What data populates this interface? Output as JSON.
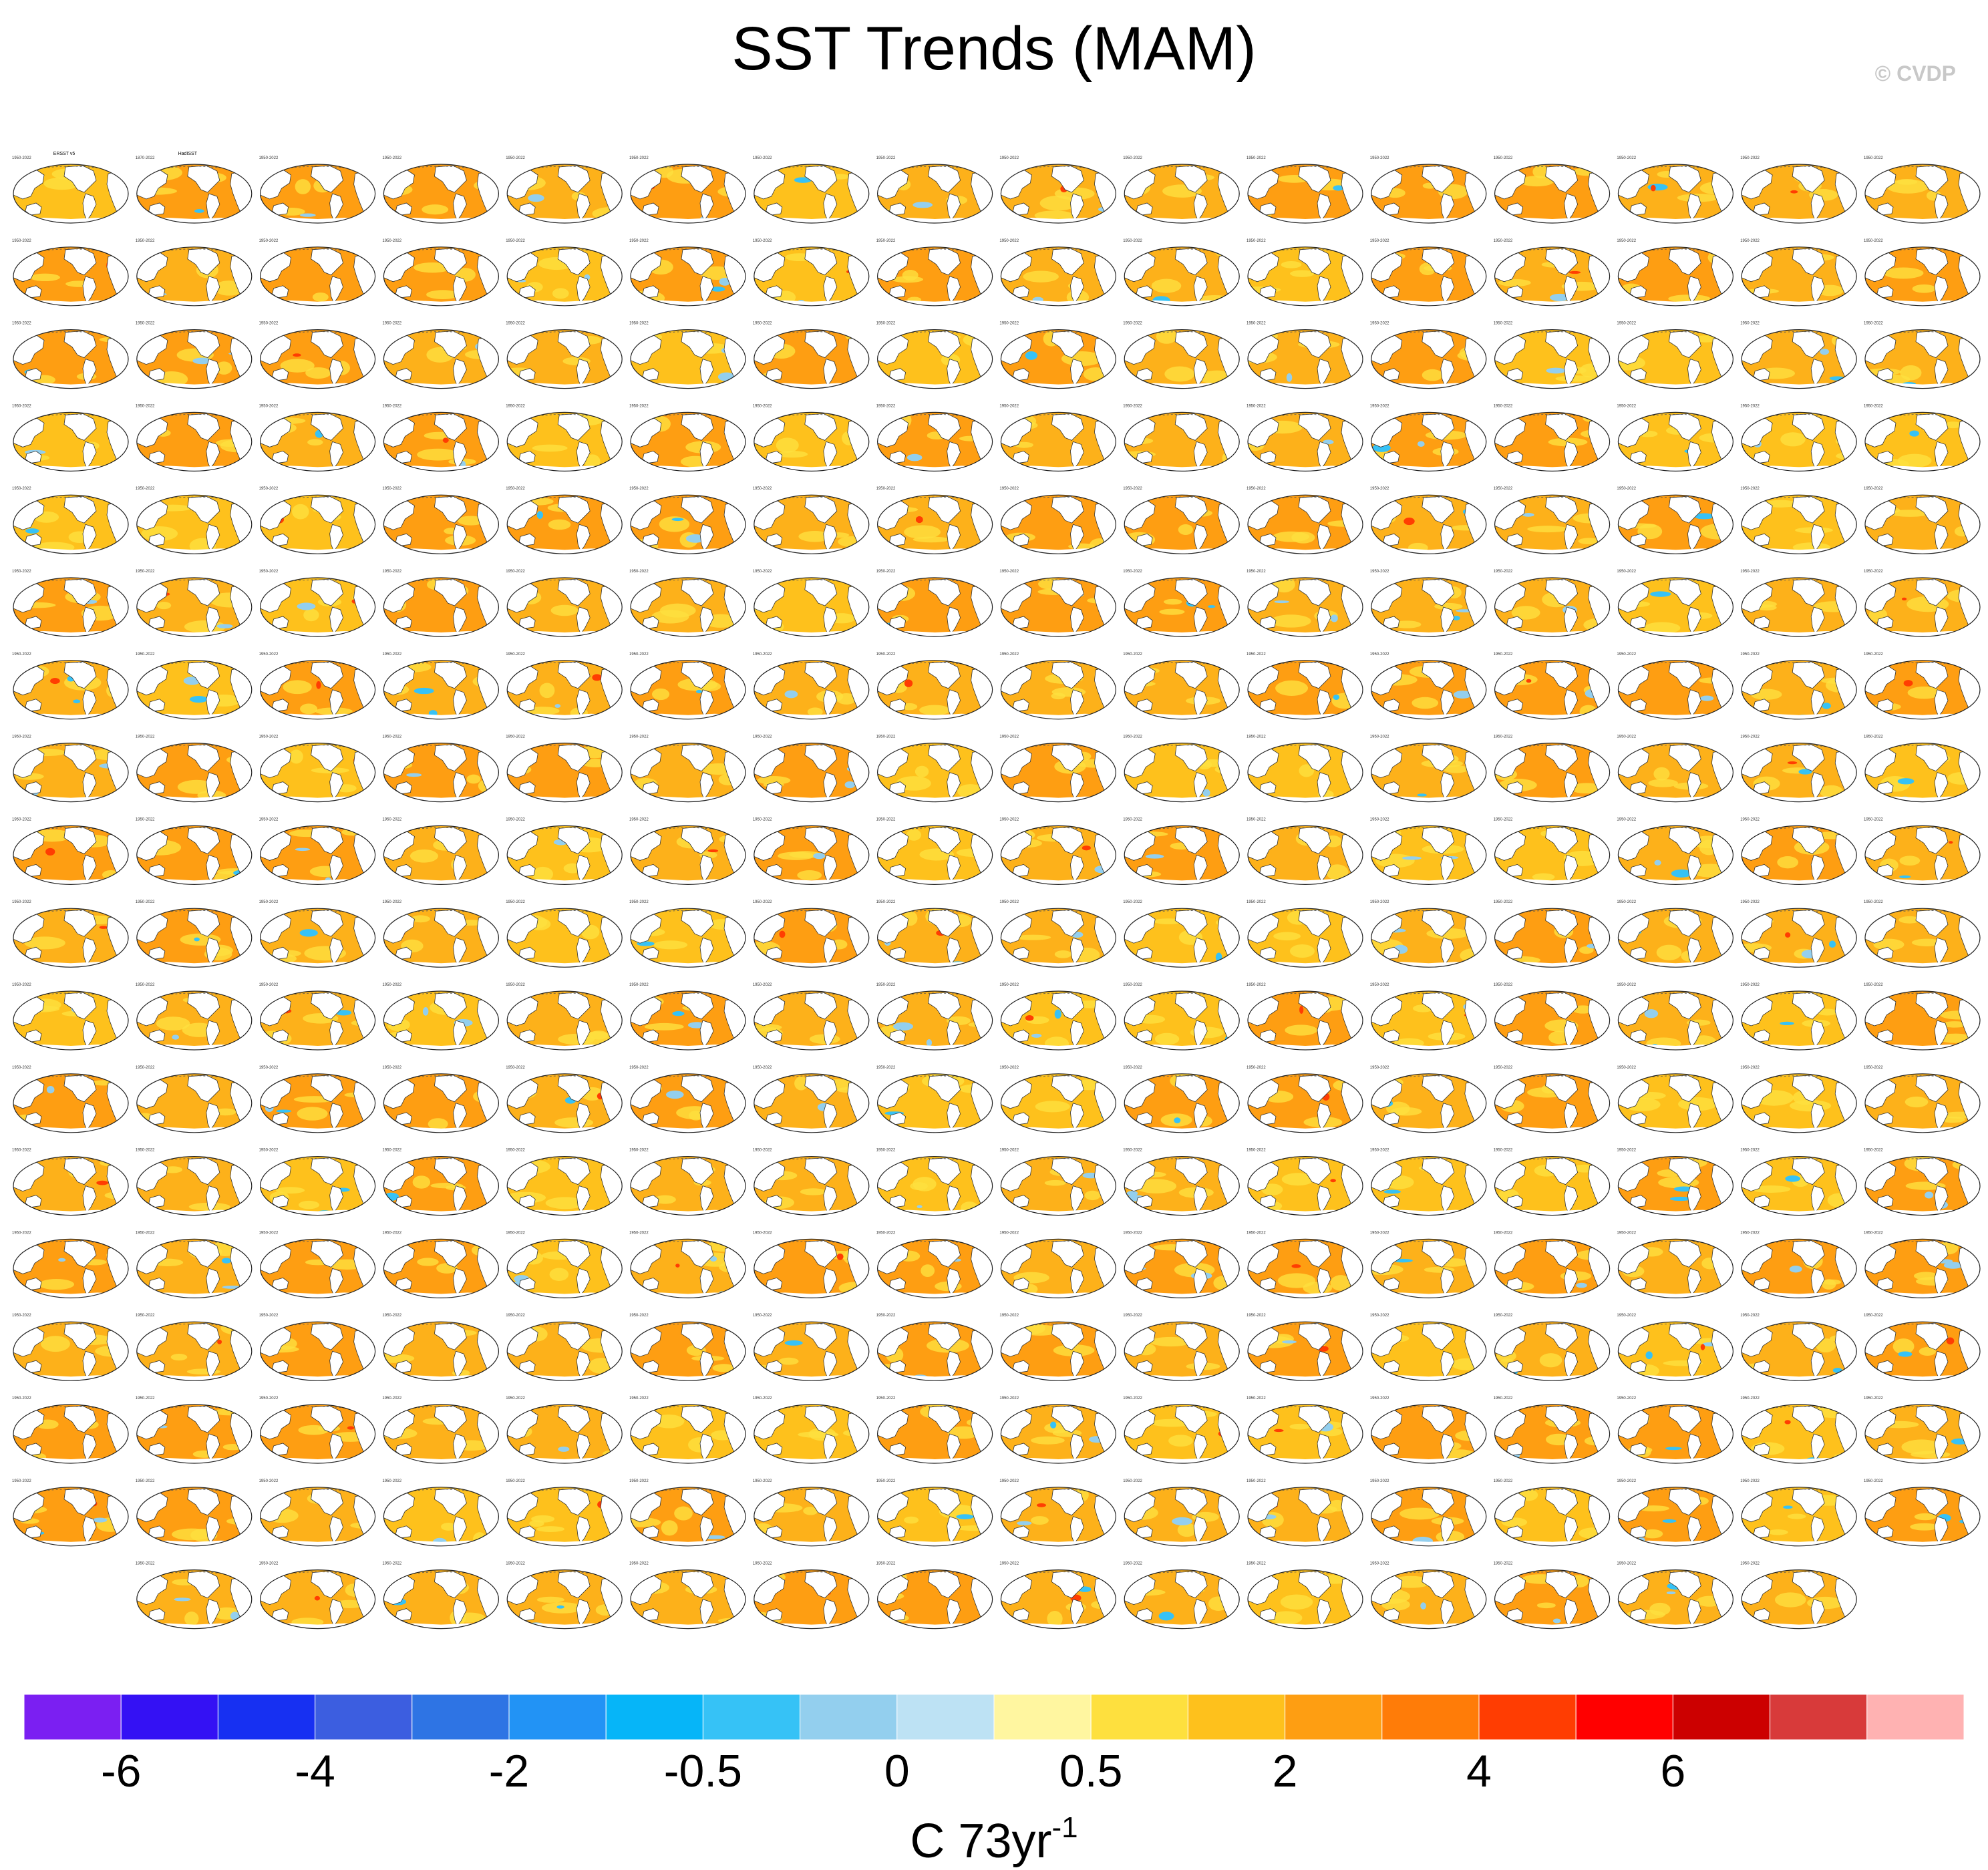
{
  "chart_data": {
    "type": "heatmap",
    "title": "SST Trends (MAM)",
    "credit": "© CVDP",
    "units_label": "C 73yr",
    "units_exponent": "-1",
    "grid": {
      "rows": 18,
      "columns": 16,
      "panel_count": 286,
      "last_row_panels": 14
    },
    "first_panels": [
      "ERSST v5",
      "HadISST"
    ],
    "first_panel_periods": [
      "1950-2022",
      "1870-2022"
    ],
    "panel_period": "1950-2022",
    "colorbar": {
      "tick_labels": [
        "-6",
        "-4",
        "-2",
        "-0.5",
        "0",
        "0.5",
        "2",
        "4",
        "6"
      ],
      "tick_boxes": [
        1,
        3,
        5,
        7,
        9,
        11,
        13,
        15,
        17
      ],
      "colors": [
        "#7b1ff2",
        "#3411f4",
        "#1730f2",
        "#3c5ee0",
        "#2e74e4",
        "#2293f5",
        "#06b5f8",
        "#36c2f6",
        "#93cfee",
        "#bde2f4",
        "#fff6a0",
        "#fee03e",
        "#fec11c",
        "#fe9e12",
        "#ff7c08",
        "#ff3d02",
        "#ff0000",
        "#cc0000",
        "#d83a3a",
        "#ffb2b2"
      ]
    }
  }
}
